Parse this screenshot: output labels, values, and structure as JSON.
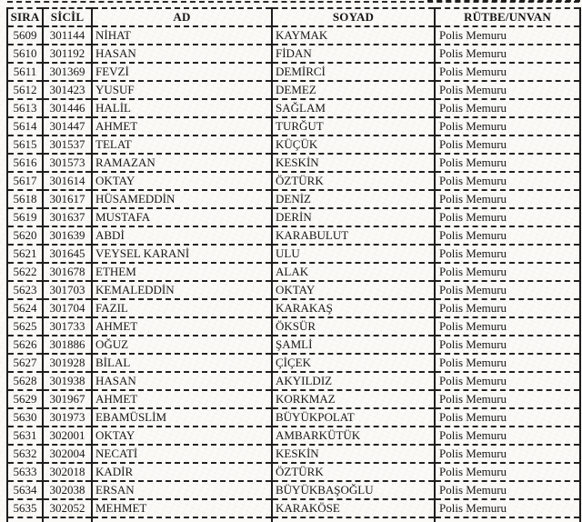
{
  "colors": {
    "paper": "#fbfaf7",
    "ink": "#161616",
    "border": "#1c1c1c"
  },
  "table": {
    "columns": [
      {
        "key": "sira",
        "label": "SIRA"
      },
      {
        "key": "sicil",
        "label": "SİCİL"
      },
      {
        "key": "ad",
        "label": "AD"
      },
      {
        "key": "soyad",
        "label": "SOYAD"
      },
      {
        "key": "rutbe",
        "label": "RÜTBE/UNVAN"
      }
    ],
    "rows": [
      {
        "sira": "5609",
        "sicil": "301144",
        "ad": "NİHAT",
        "soyad": "KAYMAK",
        "rutbe": "Polis Memuru"
      },
      {
        "sira": "5610",
        "sicil": "301192",
        "ad": "HASAN",
        "soyad": "FİDAN",
        "rutbe": "Polis Memuru"
      },
      {
        "sira": "5611",
        "sicil": "301369",
        "ad": "FEVZİ",
        "soyad": "DEMİRCİ",
        "rutbe": "Polis Memuru"
      },
      {
        "sira": "5612",
        "sicil": "301423",
        "ad": "YUSUF",
        "soyad": "DEMEZ",
        "rutbe": "Polis Memuru"
      },
      {
        "sira": "5613",
        "sicil": "301446",
        "ad": "HALİL",
        "soyad": "SAĞLAM",
        "rutbe": "Polis Memuru"
      },
      {
        "sira": "5614",
        "sicil": "301447",
        "ad": "AHMET",
        "soyad": "TURĞUT",
        "rutbe": "Polis Memuru"
      },
      {
        "sira": "5615",
        "sicil": "301537",
        "ad": "TELAT",
        "soyad": "KÜÇÜK",
        "rutbe": "Polis Memuru"
      },
      {
        "sira": "5616",
        "sicil": "301573",
        "ad": "RAMAZAN",
        "soyad": "KESKİN",
        "rutbe": "Polis Memuru"
      },
      {
        "sira": "5617",
        "sicil": "301614",
        "ad": "OKTAY",
        "soyad": "ÖZTÜRK",
        "rutbe": "Polis Memuru"
      },
      {
        "sira": "5618",
        "sicil": "301617",
        "ad": "HÜSAMEDDİN",
        "soyad": "DENİZ",
        "rutbe": "Polis Memuru"
      },
      {
        "sira": "5619",
        "sicil": "301637",
        "ad": "MUSTAFA",
        "soyad": "DERİN",
        "rutbe": "Polis Memuru"
      },
      {
        "sira": "5620",
        "sicil": "301639",
        "ad": "ABDİ",
        "soyad": "KARABULUT",
        "rutbe": "Polis Memuru"
      },
      {
        "sira": "5621",
        "sicil": "301645",
        "ad": "VEYSEL KARANİ",
        "soyad": "ULU",
        "rutbe": "Polis Memuru"
      },
      {
        "sira": "5622",
        "sicil": "301678",
        "ad": "ETHEM",
        "soyad": "ALAK",
        "rutbe": "Polis Memuru"
      },
      {
        "sira": "5623",
        "sicil": "301703",
        "ad": "KEMALEDDİN",
        "soyad": "OKTAY",
        "rutbe": "Polis Memuru"
      },
      {
        "sira": "5624",
        "sicil": "301704",
        "ad": "FAZIL",
        "soyad": "KARAKAŞ",
        "rutbe": "Polis Memuru"
      },
      {
        "sira": "5625",
        "sicil": "301733",
        "ad": "AHMET",
        "soyad": "ÖKSÜR",
        "rutbe": "Polis Memuru"
      },
      {
        "sira": "5626",
        "sicil": "301886",
        "ad": "OĞUZ",
        "soyad": "ŞAMLİ",
        "rutbe": "Polis Memuru"
      },
      {
        "sira": "5627",
        "sicil": "301928",
        "ad": "BİLAL",
        "soyad": "ÇİÇEK",
        "rutbe": "Polis Memuru"
      },
      {
        "sira": "5628",
        "sicil": "301938",
        "ad": "HASAN",
        "soyad": "AKYILDIZ",
        "rutbe": "Polis Memuru"
      },
      {
        "sira": "5629",
        "sicil": "301967",
        "ad": "AHMET",
        "soyad": "KORKMAZ",
        "rutbe": "Polis Memuru"
      },
      {
        "sira": "5630",
        "sicil": "301973",
        "ad": "EBAMÜSLİM",
        "soyad": "BÜYÜKPOLAT",
        "rutbe": "Polis Memuru"
      },
      {
        "sira": "5631",
        "sicil": "302001",
        "ad": "OKTAY",
        "soyad": "AMBARKÜTÜK",
        "rutbe": "Polis Memuru"
      },
      {
        "sira": "5632",
        "sicil": "302004",
        "ad": "NECATİ",
        "soyad": "KESKİN",
        "rutbe": "Polis Memuru"
      },
      {
        "sira": "5633",
        "sicil": "302018",
        "ad": "KADİR",
        "soyad": "ÖZTÜRK",
        "rutbe": "Polis Memuru"
      },
      {
        "sira": "5634",
        "sicil": "302038",
        "ad": "ERSAN",
        "soyad": "BÜYÜKBAŞOĞLU",
        "rutbe": "Polis Memuru"
      },
      {
        "sira": "5635",
        "sicil": "302052",
        "ad": "MEHMET",
        "soyad": "KARAKÖSE",
        "rutbe": "Polis Memuru"
      }
    ]
  }
}
